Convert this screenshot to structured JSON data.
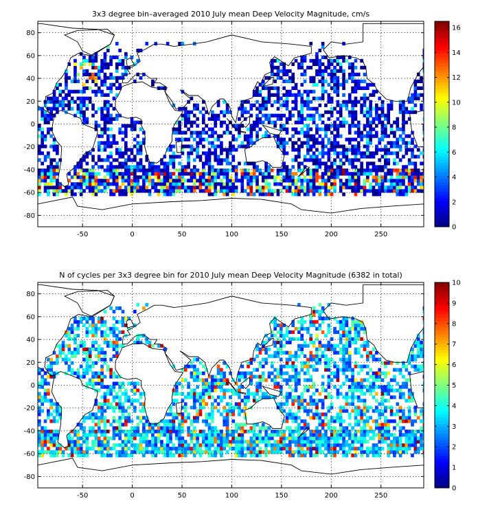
{
  "chart_data": [
    {
      "type": "heatmap",
      "title": "3x3 degree bin–averaged 2010 July mean Deep Velocity Magnitude, cm/s",
      "xlabel": "",
      "ylabel": "",
      "xlim": [
        -95,
        293
      ],
      "ylim": [
        -90,
        90
      ],
      "xticks": [
        -50,
        0,
        50,
        100,
        150,
        200,
        250
      ],
      "yticks": [
        80,
        60,
        40,
        20,
        0,
        -20,
        -40,
        -60,
        -80
      ],
      "bin_size_deg": 3,
      "grid": true,
      "colormap": "jet",
      "colorbar": {
        "min": 0,
        "max": 16.5,
        "ticks": [
          0,
          2,
          4,
          6,
          8,
          10,
          12,
          14,
          16
        ],
        "placement": "right"
      }
    },
    {
      "type": "heatmap",
      "title": "N of cycles per 3x3 degree bin for 2010 July mean Deep Velocity Magnitude (6382 in total)",
      "xlabel": "",
      "ylabel": "",
      "xlim": [
        -95,
        293
      ],
      "ylim": [
        -90,
        90
      ],
      "xticks": [
        -50,
        0,
        50,
        100,
        150,
        200,
        250
      ],
      "yticks": [
        80,
        60,
        40,
        20,
        0,
        -20,
        -40,
        -60,
        -80
      ],
      "bin_size_deg": 3,
      "total_cycles": 6382,
      "grid": true,
      "colormap": "jet",
      "colorbar": {
        "min": 0,
        "max": 10,
        "ticks": [
          0,
          1,
          2,
          3,
          4,
          5,
          6,
          7,
          8,
          9,
          10
        ],
        "placement": "right"
      }
    }
  ]
}
